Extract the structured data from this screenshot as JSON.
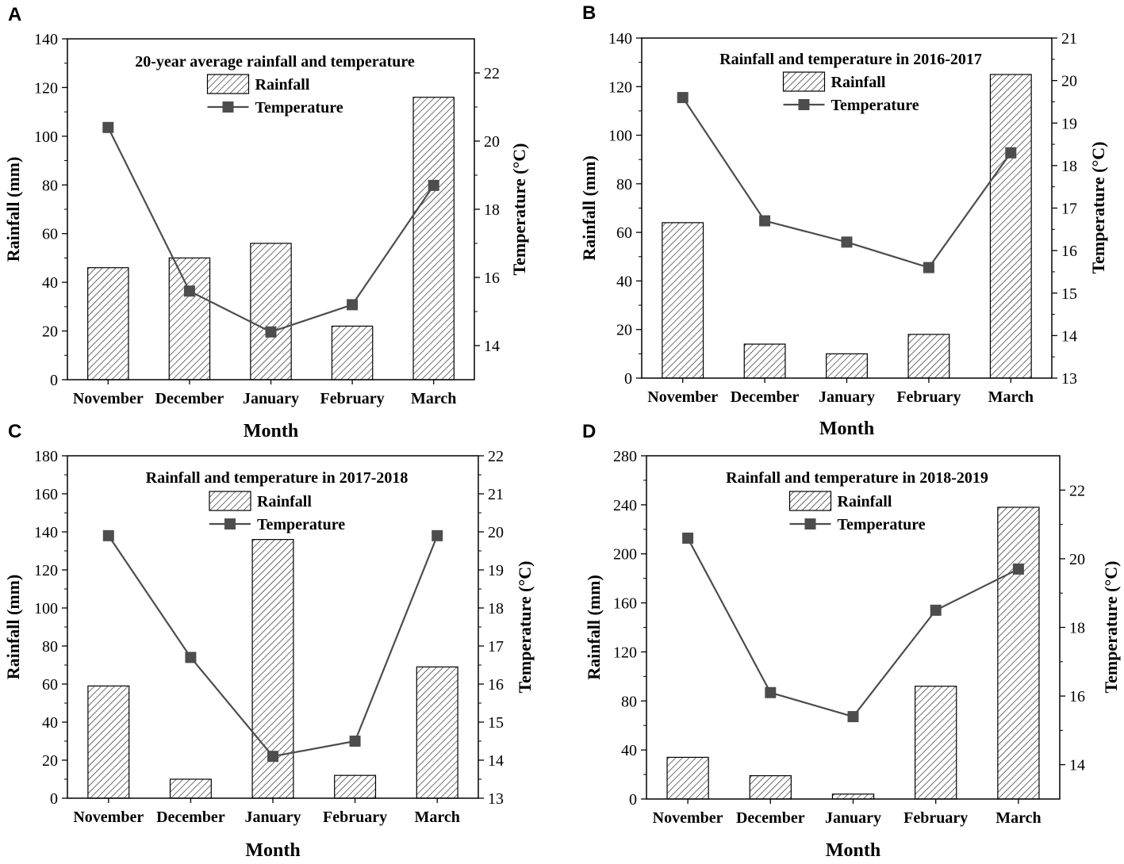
{
  "chart_data": [
    {
      "panel": "A",
      "type": "bar+line",
      "title": "20-year average rainfall and temperature",
      "categories": [
        "November",
        "December",
        "January",
        "February",
        "March"
      ],
      "series": [
        {
          "name": "Rainfall",
          "type": "bar",
          "axis": "left",
          "values": [
            46,
            50,
            56,
            22,
            116
          ]
        },
        {
          "name": "Temperature",
          "type": "line",
          "axis": "right",
          "values": [
            20.4,
            15.6,
            14.4,
            15.2,
            18.7
          ]
        }
      ],
      "xlabel": "Month",
      "ylabel": "Rainfall (mm)",
      "y2label": "Temperature (°C)",
      "ylim": [
        0,
        140
      ],
      "yticks": [
        0,
        20,
        40,
        60,
        80,
        100,
        120,
        140
      ],
      "y2lim": [
        13,
        23
      ],
      "y2ticks": [
        14,
        16,
        18,
        20,
        22
      ],
      "legend": [
        "Rainfall",
        "Temperature"
      ]
    },
    {
      "panel": "B",
      "type": "bar+line",
      "title": "Rainfall and temperature in 2016-2017",
      "categories": [
        "November",
        "December",
        "January",
        "February",
        "March"
      ],
      "series": [
        {
          "name": "Rainfall",
          "type": "bar",
          "axis": "left",
          "values": [
            64,
            14,
            10,
            18,
            125
          ]
        },
        {
          "name": "Temperature",
          "type": "line",
          "axis": "right",
          "values": [
            19.6,
            16.7,
            16.2,
            15.6,
            18.3
          ]
        }
      ],
      "xlabel": "Month",
      "ylabel": "Rainfall (mm)",
      "y2label": "Temperature (°C)",
      "ylim": [
        0,
        140
      ],
      "yticks": [
        0,
        20,
        40,
        60,
        80,
        100,
        120,
        140
      ],
      "y2lim": [
        13,
        21
      ],
      "y2ticks": [
        13,
        14,
        15,
        16,
        17,
        18,
        19,
        20,
        21
      ],
      "legend": [
        "Rainfall",
        "Temperature"
      ]
    },
    {
      "panel": "C",
      "type": "bar+line",
      "title": "Rainfall and temperature in 2017-2018",
      "categories": [
        "November",
        "December",
        "January",
        "February",
        "March"
      ],
      "series": [
        {
          "name": "Rainfall",
          "type": "bar",
          "axis": "left",
          "values": [
            59,
            10,
            136,
            12,
            69
          ]
        },
        {
          "name": "Temperature",
          "type": "line",
          "axis": "right",
          "values": [
            19.9,
            16.7,
            14.1,
            14.5,
            19.9
          ]
        }
      ],
      "xlabel": "Month",
      "ylabel": "Rainfall (mm)",
      "y2label": "Temperature (°C)",
      "ylim": [
        0,
        180
      ],
      "yticks": [
        0,
        20,
        40,
        60,
        80,
        100,
        120,
        140,
        160,
        180
      ],
      "y2lim": [
        13,
        22
      ],
      "y2ticks": [
        13,
        14,
        15,
        16,
        17,
        18,
        19,
        20,
        21,
        22
      ],
      "legend": [
        "Rainfall",
        "Temperature"
      ]
    },
    {
      "panel": "D",
      "type": "bar+line",
      "title": "Rainfall and temperature in 2018-2019",
      "categories": [
        "November",
        "December",
        "January",
        "February",
        "March"
      ],
      "series": [
        {
          "name": "Rainfall",
          "type": "bar",
          "axis": "left",
          "values": [
            34,
            19,
            4,
            92,
            238
          ]
        },
        {
          "name": "Temperature",
          "type": "line",
          "axis": "right",
          "values": [
            20.6,
            16.1,
            15.4,
            18.5,
            19.7
          ]
        }
      ],
      "xlabel": "Month",
      "ylabel": "Rainfall (mm)",
      "y2label": "Temperature (°C)",
      "ylim": [
        0,
        280
      ],
      "yticks": [
        0,
        40,
        80,
        120,
        160,
        200,
        240,
        280
      ],
      "y2lim": [
        13,
        23
      ],
      "y2ticks": [
        14,
        16,
        18,
        20,
        22
      ],
      "legend": [
        "Rainfall",
        "Temperature"
      ]
    }
  ]
}
